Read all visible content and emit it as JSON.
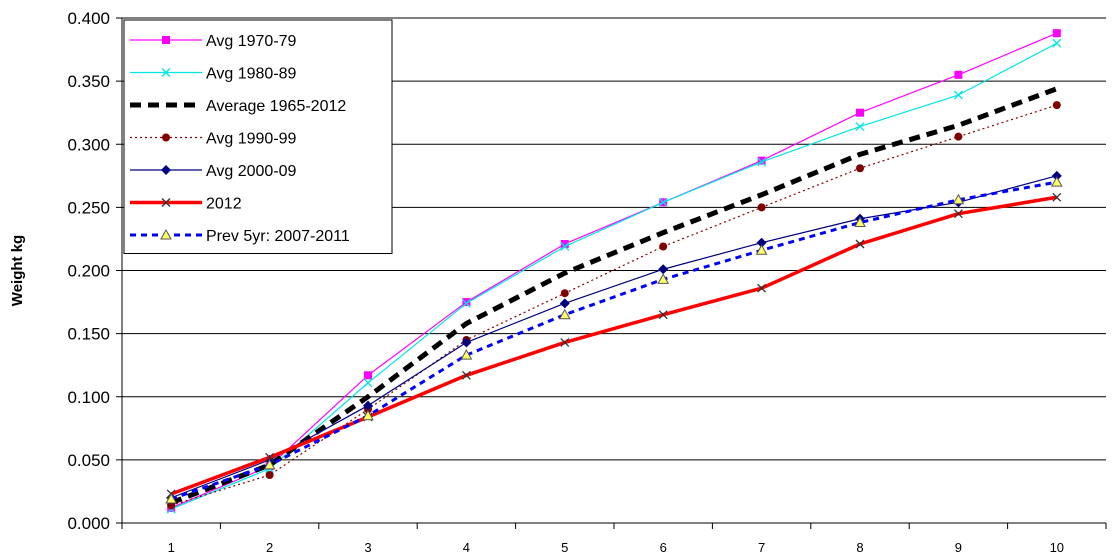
{
  "chart_data": {
    "type": "line",
    "title": "",
    "xlabel": "",
    "ylabel": "Weight kg",
    "x": [
      1,
      2,
      3,
      4,
      5,
      6,
      7,
      8,
      9,
      10
    ],
    "ylim": [
      0,
      0.4
    ],
    "yticks": [
      "0.000",
      "0.050",
      "0.100",
      "0.150",
      "0.200",
      "0.250",
      "0.300",
      "0.350",
      "0.400"
    ],
    "grid": "horizontal",
    "legend_position": "top-left",
    "series": [
      {
        "name": "Avg 1970-79",
        "color": "#ff00ff",
        "style": "solid",
        "marker": "square",
        "values": [
          0.012,
          0.045,
          0.117,
          0.175,
          0.221,
          0.254,
          0.287,
          0.325,
          0.355,
          0.388
        ]
      },
      {
        "name": "Avg 1980-89",
        "color": "#00e5e5",
        "style": "solid",
        "marker": "x",
        "values": [
          0.011,
          0.043,
          0.111,
          0.174,
          0.219,
          0.254,
          0.286,
          0.314,
          0.339,
          0.38
        ]
      },
      {
        "name": "Average 1965-2012",
        "color": "#000000",
        "style": "bold-dashed",
        "marker": "none",
        "values": [
          0.016,
          0.046,
          0.1,
          0.158,
          0.198,
          0.23,
          0.26,
          0.292,
          0.315,
          0.344
        ]
      },
      {
        "name": "Avg 1990-99",
        "color": "#800000",
        "style": "dotted",
        "marker": "circle",
        "values": [
          0.014,
          0.038,
          0.09,
          0.145,
          0.182,
          0.219,
          0.25,
          0.281,
          0.306,
          0.331
        ]
      },
      {
        "name": "Avg 2000-09",
        "color": "#000080",
        "style": "solid",
        "marker": "diamond",
        "values": [
          0.02,
          0.05,
          0.093,
          0.143,
          0.174,
          0.201,
          0.222,
          0.241,
          0.254,
          0.275
        ]
      },
      {
        "name": "2012",
        "color": "#ff0000",
        "style": "thick-solid",
        "marker": "x",
        "values": [
          0.023,
          0.052,
          0.084,
          0.117,
          0.143,
          0.165,
          0.186,
          0.221,
          0.245,
          0.258
        ]
      },
      {
        "name": "Prev 5yr: 2007-2011",
        "color": "#0000ff",
        "style": "dashed",
        "marker": "triangle",
        "values": [
          0.019,
          0.046,
          0.085,
          0.133,
          0.165,
          0.193,
          0.216,
          0.238,
          0.256,
          0.27
        ]
      }
    ]
  }
}
